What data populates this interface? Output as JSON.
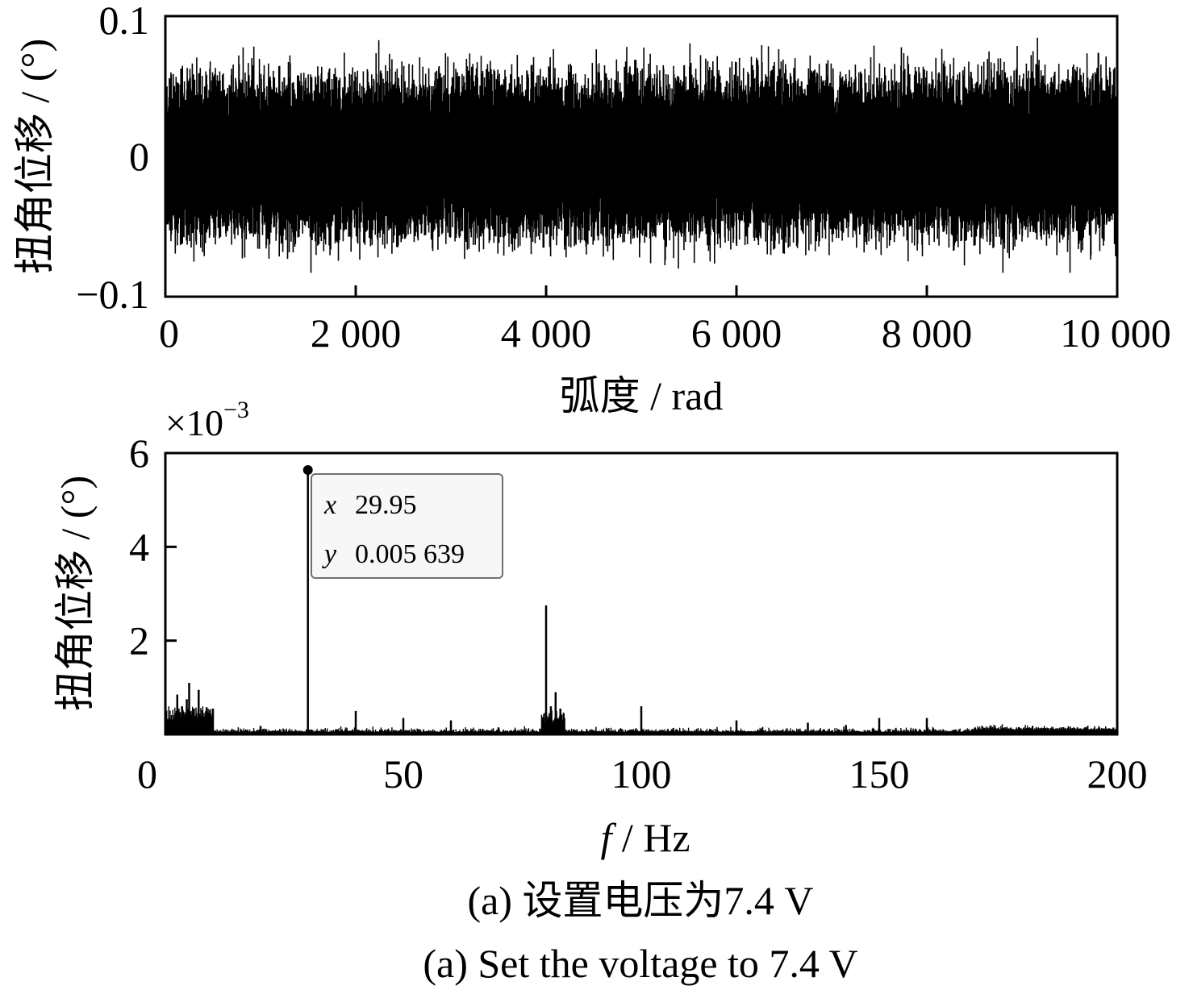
{
  "chart_data": [
    {
      "type": "line",
      "xlabel": "弧度 / rad",
      "ylabel": "扭角位移 / (°)",
      "xlim": [
        0,
        10000
      ],
      "ylim": [
        -0.1,
        0.1
      ],
      "xticks": [
        0,
        2000,
        4000,
        6000,
        8000,
        10000
      ],
      "xtick_labels": [
        "0",
        "2 000",
        "4 000",
        "6 000",
        "8 000",
        "10 000"
      ],
      "yticks": [
        -0.1,
        0,
        0.1
      ],
      "ytick_labels": [
        "−0.1",
        "0",
        "0.1"
      ],
      "grid": false,
      "signal": {
        "description_level": "dense noise around 0",
        "typical_amplitude": 0.045,
        "peak_amplitude": 0.087,
        "peak_min": -0.083
      }
    },
    {
      "type": "line",
      "xlabel_var": "f",
      "xlabel_unit": " / Hz",
      "ylabel": "扭角位移 / (°)",
      "y_multiplier": "×10",
      "y_multiplier_exp": "−3",
      "xlim": [
        0,
        200
      ],
      "ylim": [
        0,
        6
      ],
      "xticks": [
        0,
        50,
        100,
        150,
        200
      ],
      "xtick_labels": [
        "0",
        "50",
        "100",
        "150",
        "200"
      ],
      "yticks": [
        2,
        4,
        6
      ],
      "ytick_labels": [
        "2",
        "4",
        "6"
      ],
      "grid": false,
      "peaks": [
        {
          "x": 2.5,
          "y": 0.85
        },
        {
          "x": 3.5,
          "y": 0.6
        },
        {
          "x": 4.5,
          "y": 0.75
        },
        {
          "x": 5.0,
          "y": 1.1
        },
        {
          "x": 6.0,
          "y": 0.55
        },
        {
          "x": 7.0,
          "y": 0.95
        },
        {
          "x": 8.0,
          "y": 0.35
        },
        {
          "x": 10.0,
          "y": 0.55
        },
        {
          "x": 20.0,
          "y": 0.18
        },
        {
          "x": 29.95,
          "y": 5.639
        },
        {
          "x": 40.0,
          "y": 0.5
        },
        {
          "x": 50.0,
          "y": 0.35
        },
        {
          "x": 60.0,
          "y": 0.3
        },
        {
          "x": 70.0,
          "y": 0.15
        },
        {
          "x": 80.0,
          "y": 2.75
        },
        {
          "x": 81.0,
          "y": 0.6
        },
        {
          "x": 82.0,
          "y": 0.9
        },
        {
          "x": 83.0,
          "y": 0.55
        },
        {
          "x": 100.0,
          "y": 0.6
        },
        {
          "x": 120.0,
          "y": 0.3
        },
        {
          "x": 135.0,
          "y": 0.25
        },
        {
          "x": 143.0,
          "y": 0.2
        },
        {
          "x": 150.0,
          "y": 0.35
        },
        {
          "x": 160.0,
          "y": 0.35
        }
      ],
      "datatip": {
        "x_label": "x",
        "x_value": "29.95",
        "y_label": "y",
        "y_value": "0.005 639",
        "x": 29.95,
        "y": 5.639
      }
    }
  ],
  "captions": {
    "zh": "(a)  设置电压为7.4 V",
    "en": "(a)  Set the voltage to 7.4 V"
  }
}
